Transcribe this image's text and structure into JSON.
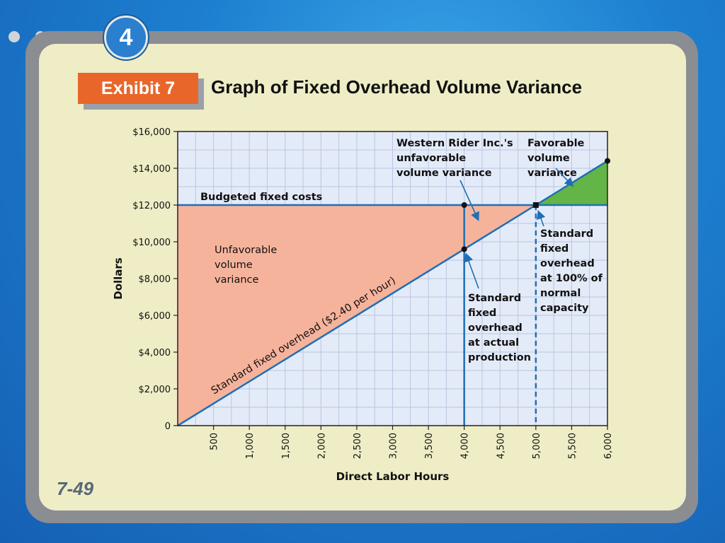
{
  "slide": {
    "badge": "4",
    "exhibit": "Exhibit 7",
    "title": "Graph of Fixed Overhead Volume Variance",
    "page_number": "7-49"
  },
  "chart_data": {
    "type": "line",
    "title": "",
    "xlabel": "Direct Labor Hours",
    "ylabel": "Dollars",
    "xlim": [
      0,
      6000
    ],
    "ylim": [
      0,
      16000
    ],
    "x_ticks": [
      500,
      1000,
      1500,
      2000,
      2500,
      3000,
      3500,
      4000,
      4500,
      5000,
      5500,
      6000
    ],
    "x_tick_labels": [
      "500",
      "1,000",
      "1,500",
      "2,000",
      "2,500",
      "3,000",
      "3,500",
      "4,000",
      "4,500",
      "5,000",
      "5,500",
      "6,000"
    ],
    "y_ticks": [
      0,
      2000,
      4000,
      6000,
      8000,
      10000,
      12000,
      14000,
      16000
    ],
    "y_tick_labels": [
      "0",
      "$2,000",
      "$4,000",
      "$6,000",
      "$8,000",
      "$10,000",
      "$12,000",
      "$14,000",
      "$16,000"
    ],
    "grid": true,
    "series": [
      {
        "name": "Standard fixed overhead ($2.40 per hour)",
        "x": [
          0,
          6000
        ],
        "y": [
          0,
          14400
        ]
      },
      {
        "name": "Budgeted fixed costs",
        "x": [
          0,
          6000
        ],
        "y": [
          12000,
          12000
        ]
      }
    ],
    "points": [
      {
        "x": 4000,
        "y": 12000
      },
      {
        "x": 4000,
        "y": 9600
      },
      {
        "x": 5000,
        "y": 12000
      },
      {
        "x": 6000,
        "y": 14400
      }
    ],
    "annotations": {
      "unfavorable_region": "Unfavorable\nvolume\nvariance",
      "western_rider": "Western Rider Inc.'s\nunfavorable\nvolume variance",
      "favorable": "Favorable\nvolume\nvariance",
      "std_100": "Standard\nfixed\noverhead\nat 100% of\nnormal\ncapacity",
      "std_actual": "Standard\nfixed\noverhead\nat actual\nproduction"
    },
    "colors": {
      "unfavorable_fill": "#f6b39c",
      "favorable_fill": "#62b546",
      "line": "#1f6fb5",
      "grid": "#b8c6e0",
      "plot_bg": "#e4ebf8"
    }
  }
}
